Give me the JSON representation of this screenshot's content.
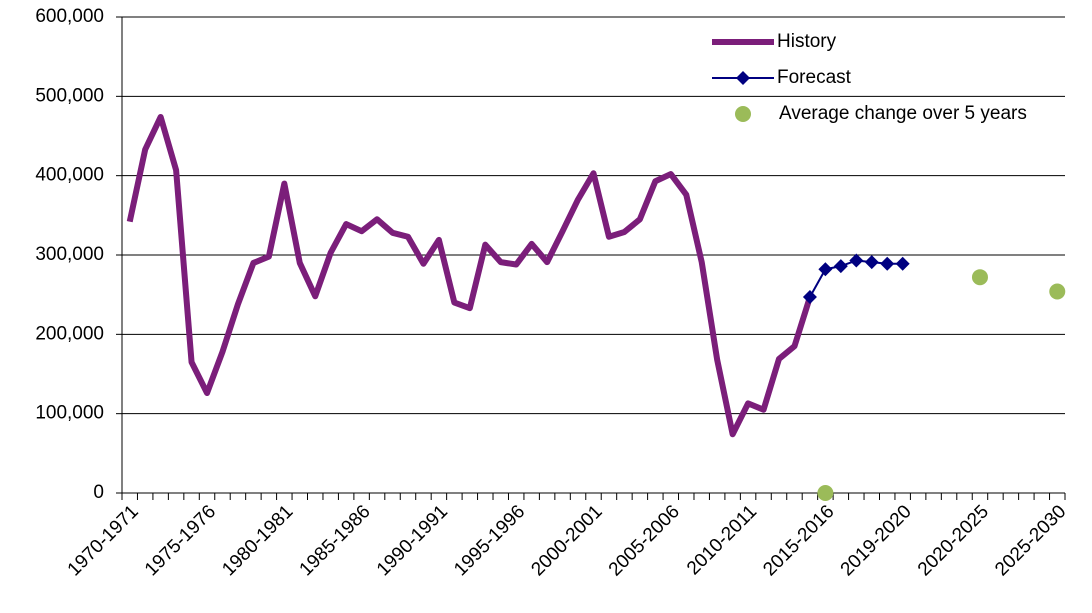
{
  "chart_data": {
    "type": "line",
    "categories": [
      "1970-1971",
      null,
      null,
      null,
      null,
      "1975-1976",
      null,
      null,
      null,
      null,
      "1980-1981",
      null,
      null,
      null,
      null,
      "1985-1986",
      null,
      null,
      null,
      null,
      "1990-1991",
      null,
      null,
      null,
      null,
      "1995-1996",
      null,
      null,
      null,
      null,
      "2000-2001",
      null,
      null,
      null,
      null,
      "2005-2006",
      null,
      null,
      null,
      null,
      "2010-2011",
      null,
      null,
      null,
      null,
      "2015-2016",
      null,
      null,
      null,
      null,
      "2019-2020",
      null,
      null,
      null,
      null,
      "2020-2025",
      null,
      null,
      null,
      null,
      "2025-2030"
    ],
    "series": [
      {
        "name": "History",
        "color": "#7b1e7a",
        "marker": "none",
        "values": [
          342000,
          433000,
          474000,
          407000,
          165000,
          126000,
          178000,
          238000,
          290000,
          298000,
          390000,
          290000,
          248000,
          303000,
          339000,
          330000,
          345000,
          328000,
          323000,
          289000,
          319000,
          240000,
          233000,
          313000,
          291000,
          288000,
          314000,
          291000,
          330000,
          370000,
          403000,
          323000,
          329000,
          345000,
          393000,
          402000,
          376000,
          291000,
          168000,
          74000,
          113000,
          105000,
          169000,
          185000,
          247000,
          null,
          null,
          null,
          null,
          null,
          null,
          null,
          null,
          null,
          null,
          null,
          null,
          null,
          null,
          null,
          null
        ]
      },
      {
        "name": "Forecast",
        "color": "#000080",
        "marker": "diamond",
        "values": [
          null,
          null,
          null,
          null,
          null,
          null,
          null,
          null,
          null,
          null,
          null,
          null,
          null,
          null,
          null,
          null,
          null,
          null,
          null,
          null,
          null,
          null,
          null,
          null,
          null,
          null,
          null,
          null,
          null,
          null,
          null,
          null,
          null,
          null,
          null,
          null,
          null,
          null,
          null,
          null,
          null,
          null,
          null,
          null,
          247000,
          282000,
          286000,
          293000,
          291000,
          289000,
          289000,
          null,
          null,
          null,
          null,
          null,
          null,
          null,
          null,
          null,
          null
        ]
      },
      {
        "name": "Average change over 5 years",
        "color": "#9bbb59",
        "marker": "dot",
        "values": [
          null,
          null,
          null,
          null,
          null,
          null,
          null,
          null,
          null,
          null,
          null,
          null,
          null,
          null,
          null,
          null,
          null,
          null,
          null,
          null,
          null,
          null,
          null,
          null,
          null,
          null,
          null,
          null,
          null,
          null,
          null,
          null,
          null,
          null,
          null,
          null,
          null,
          null,
          null,
          null,
          null,
          null,
          null,
          null,
          null,
          0,
          null,
          null,
          null,
          null,
          null,
          null,
          null,
          null,
          null,
          272000,
          null,
          null,
          null,
          null,
          254000
        ]
      }
    ],
    "ylim": [
      0,
      600000
    ],
    "yticks": [
      0,
      {
        "value": 100000,
        "label": "100,000"
      },
      {
        "value": 200000,
        "label": "200,000"
      },
      {
        "value": 300000,
        "label": "300,000"
      },
      {
        "value": 400000,
        "label": "400,000"
      },
      {
        "value": 500000,
        "label": "500,000"
      },
      {
        "value": 600000,
        "label": "600,000"
      }
    ],
    "grid": true,
    "legend": "top-right"
  }
}
